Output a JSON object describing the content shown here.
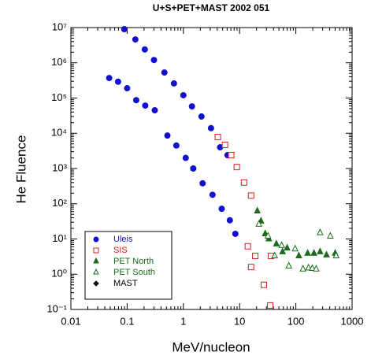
{
  "chart_data": {
    "type": "scatter",
    "title": "U+S+PET+MAST 2002 051",
    "x_label": "MeV/nucleon",
    "y_label": "He Fluence",
    "log_x": true,
    "log_y": true,
    "legend": "lower-left",
    "xlim": [
      0.01,
      1000
    ],
    "xticks": [
      0.01,
      0.1,
      1,
      10,
      100,
      1000
    ],
    "ylim": [
      0.1,
      10000000
    ],
    "yticks": [
      {
        "value": 0.1,
        "label": "10⁻¹"
      },
      {
        "value": 1,
        "label": "10⁰"
      },
      {
        "value": 10,
        "label": "10¹"
      },
      {
        "value": 100,
        "label": "10²"
      },
      {
        "value": 1000,
        "label": "10³"
      },
      {
        "value": 10000,
        "label": "10⁴"
      },
      {
        "value": 100000,
        "label": "10⁵"
      },
      {
        "value": 1000000,
        "label": "10⁶"
      },
      {
        "value": 10000000,
        "label": "10⁷"
      }
    ],
    "series": [
      {
        "name": "Uleis",
        "color": "#1010d0",
        "marker": "circle",
        "x": [
          0.089,
          0.14,
          0.206,
          0.3,
          0.46,
          0.68,
          1.0,
          1.42,
          2.1,
          3.1,
          4.5,
          6.1,
          0.048,
          0.069,
          0.1,
          0.145,
          0.21,
          0.31,
          0.52,
          0.75,
          1.1,
          1.5,
          2.2,
          3.3,
          4.8,
          6.7,
          8.4
        ],
        "values": [
          9000000,
          4600000,
          2400000,
          1200000,
          530000,
          260000,
          120000,
          58000,
          30000,
          14000,
          4000,
          2400,
          370000,
          290000,
          190000,
          87000,
          61000,
          45000,
          8600,
          4500,
          2000,
          1000,
          380,
          180,
          72,
          34,
          14
        ]
      },
      {
        "name": "SIS",
        "color": "#d02020",
        "marker": "square-open",
        "x": [
          4.1,
          5.5,
          7.1,
          8.9,
          12,
          16,
          14,
          16,
          19,
          27,
          35,
          36
        ],
        "values": [
          7800,
          4700,
          2400,
          1100,
          400,
          170,
          6.2,
          1.6,
          3.3,
          0.5,
          0.13,
          3.3
        ]
      },
      {
        "name": "PET North",
        "color": "#1a6b1a",
        "marker": "triangle",
        "x": [
          20.6,
          24,
          28.5,
          33,
          45,
          58,
          70,
          113,
          162,
          210,
          270,
          350,
          500
        ],
        "values": [
          62,
          32,
          14,
          10,
          7.2,
          4.3,
          5.5,
          3.3,
          3.9,
          3.9,
          4.3,
          3.5,
          3.9
        ]
      },
      {
        "name": "PET South",
        "color": "#1a6b1a",
        "marker": "triangle-open",
        "x": [
          22,
          32,
          42,
          56,
          75,
          97,
          134,
          168,
          196,
          230,
          270,
          410,
          520
        ],
        "values": [
          26,
          12,
          3.3,
          6.5,
          1.7,
          5.2,
          1.4,
          1.5,
          1.45,
          1.4,
          15,
          12,
          3.3
        ]
      },
      {
        "name": "MAST",
        "color": "#000000",
        "marker": "diamond",
        "x": [],
        "values": []
      }
    ]
  }
}
